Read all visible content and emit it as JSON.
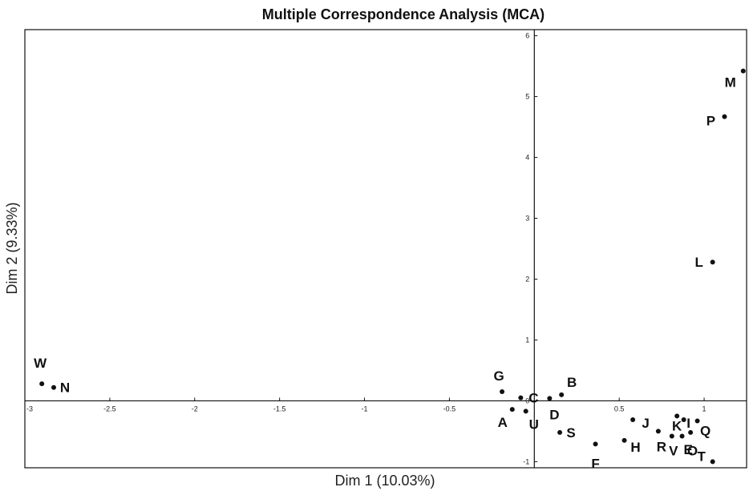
{
  "chart_data": {
    "type": "scatter",
    "title": "Multiple Correspondence Analysis (MCA)",
    "xlabel": "Dim 1 (10.03%)",
    "ylabel": "Dim 2 (9.33%)",
    "xlim": [
      -3.0,
      1.25
    ],
    "ylim": [
      -1.1,
      6.1
    ],
    "xticks": [
      {
        "value": -3,
        "label": "-3"
      },
      {
        "value": -2.5,
        "label": "-2.5"
      },
      {
        "value": -2,
        "label": "-2"
      },
      {
        "value": -1.5,
        "label": "-1.5"
      },
      {
        "value": -1,
        "label": "-1"
      },
      {
        "value": -0.5,
        "label": "-0.5"
      },
      {
        "value": 0.5,
        "label": "0.5"
      },
      {
        "value": 1,
        "label": "1"
      }
    ],
    "yticks": [
      {
        "value": -1,
        "label": "-1"
      },
      {
        "value": 0,
        "label": "0"
      },
      {
        "value": 1,
        "label": "1"
      },
      {
        "value": 2,
        "label": "2"
      },
      {
        "value": 3,
        "label": "3"
      },
      {
        "value": 4,
        "label": "4"
      },
      {
        "value": 5,
        "label": "5"
      },
      {
        "value": 6,
        "label": "6"
      }
    ],
    "grid": false,
    "points": [
      {
        "label": "W",
        "x": -2.9,
        "y": 0.28
      },
      {
        "label": "N",
        "x": -2.83,
        "y": 0.22
      },
      {
        "label": "G",
        "x": -0.19,
        "y": 0.15
      },
      {
        "label": "C",
        "x": -0.08,
        "y": 0.05
      },
      {
        "label": "A",
        "x": -0.13,
        "y": -0.14
      },
      {
        "label": "U",
        "x": -0.05,
        "y": -0.17
      },
      {
        "label": "D",
        "x": 0.09,
        "y": 0.04
      },
      {
        "label": "B",
        "x": 0.16,
        "y": 0.1
      },
      {
        "label": "S",
        "x": 0.15,
        "y": -0.52
      },
      {
        "label": "F",
        "x": 0.36,
        "y": -0.71
      },
      {
        "label": "J",
        "x": 0.58,
        "y": -0.31
      },
      {
        "label": "H",
        "x": 0.53,
        "y": -0.65
      },
      {
        "label": "K",
        "x": 0.84,
        "y": -0.25
      },
      {
        "label": "I",
        "x": 0.88,
        "y": -0.31
      },
      {
        "label": "R",
        "x": 0.73,
        "y": -0.5
      },
      {
        "label": "V",
        "x": 0.81,
        "y": -0.58
      },
      {
        "label": "O",
        "x": 0.87,
        "y": -0.58
      },
      {
        "label": "E",
        "x": 0.92,
        "y": -0.52
      },
      {
        "label": "Q",
        "x": 0.96,
        "y": -0.33
      },
      {
        "label": "T",
        "x": 1.05,
        "y": -1.0
      },
      {
        "label": "L",
        "x": 1.05,
        "y": 2.28
      },
      {
        "label": "P",
        "x": 1.12,
        "y": 4.67
      },
      {
        "label": "M",
        "x": 1.23,
        "y": 5.42
      }
    ]
  }
}
